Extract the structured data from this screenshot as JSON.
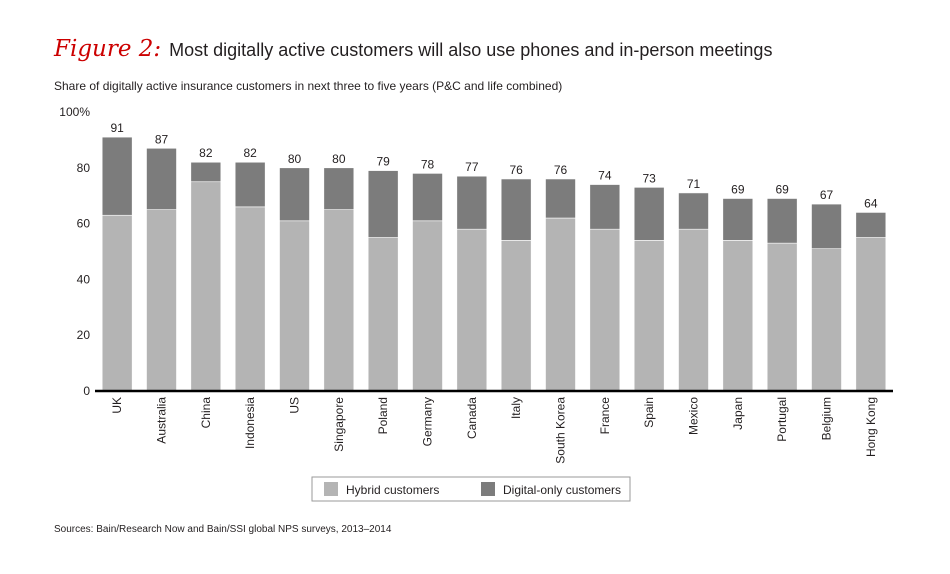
{
  "figure_label": "Figure 2:",
  "title": "Most digitally active customers will also use phones and in-person meetings",
  "subtitle": "Share of digitally active insurance customers in next three to five years (P&C and life combined)",
  "source": "Sources: Bain/Research Now and Bain/SSI global NPS surveys, 2013–2014",
  "colors": {
    "hybrid": "#b4b4b4",
    "digital_only": "#7c7c7c",
    "accent": "#cc0000"
  },
  "chart_data": {
    "type": "bar",
    "stacked": true,
    "categories": [
      "UK",
      "Australia",
      "China",
      "Indonesia",
      "US",
      "Singapore",
      "Poland",
      "Germany",
      "Canada",
      "Italy",
      "South Korea",
      "France",
      "Spain",
      "Mexico",
      "Japan",
      "Portugal",
      "Belgium",
      "Hong Kong"
    ],
    "series": [
      {
        "name": "Hybrid customers",
        "values": [
          63,
          65,
          75,
          66,
          61,
          65,
          55,
          61,
          58,
          54,
          62,
          58,
          54,
          58,
          54,
          53,
          51,
          55
        ]
      },
      {
        "name": "Digital-only customers",
        "values": [
          28,
          22,
          7,
          16,
          19,
          15,
          24,
          17,
          19,
          22,
          14,
          16,
          19,
          13,
          15,
          16,
          16,
          9
        ]
      }
    ],
    "totals": [
      91,
      87,
      82,
      82,
      80,
      80,
      79,
      78,
      77,
      76,
      76,
      74,
      73,
      71,
      69,
      69,
      67,
      64
    ],
    "ylim": [
      0,
      100
    ],
    "yticks": [
      "0",
      "20",
      "40",
      "60",
      "80",
      "100%"
    ],
    "ytick_values": [
      0,
      20,
      40,
      60,
      80,
      100
    ],
    "grid": false,
    "legend_position": "bottom-center"
  }
}
